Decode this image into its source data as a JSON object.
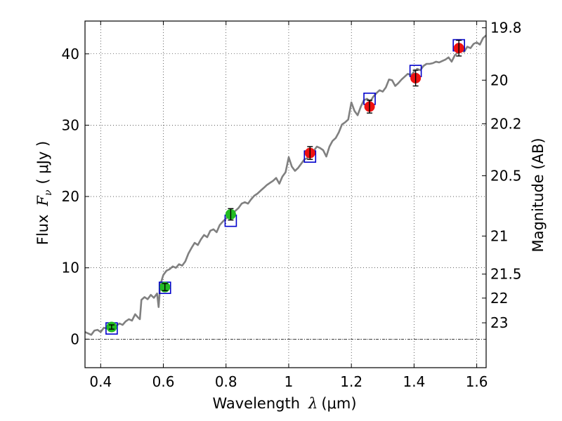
{
  "chart_data": {
    "type": "scatter",
    "title": "",
    "xlabel": "Wavelength",
    "xlabel_symbol": "λ",
    "xlabel_unit": "(μm)",
    "ylabel": "Flux",
    "ylabel_symbol": "F",
    "ylabel_subscript": "ν",
    "ylabel_unit": "( μJy )",
    "y2label": "Magnitude (AB)",
    "xlim": [
      0.35,
      1.63
    ],
    "ylim": [
      -4,
      44.6
    ],
    "grid": true,
    "xticks": [
      0.4,
      0.6,
      0.8,
      1.0,
      1.2,
      1.4,
      1.6
    ],
    "xtick_labels": [
      "0.4",
      "0.6",
      "0.8",
      "1",
      "1.2",
      "1.4",
      "1.6"
    ],
    "yticks": [
      0,
      10,
      20,
      30,
      40
    ],
    "ytick_labels": [
      "0",
      "10",
      "20",
      "30",
      "40"
    ],
    "mag_ticks": [
      19.8,
      20,
      20.2,
      20.5,
      21,
      21.5,
      22,
      23
    ],
    "mag_tick_labels": [
      "19.8",
      "20",
      "20.2",
      "20.5",
      "21",
      "21.5",
      "22",
      "23"
    ],
    "colors": {
      "spectrum": "#808080",
      "model_box": "#0000cc",
      "green_points": "#22bb22",
      "red_points": "#ee1111",
      "errorbar": "#000000",
      "zero_line": "#000000"
    },
    "series": [
      {
        "name": "model_spectrum",
        "kind": "line",
        "x": [
          0.35,
          0.37,
          0.38,
          0.39,
          0.4,
          0.41,
          0.42,
          0.43,
          0.44,
          0.45,
          0.46,
          0.47,
          0.48,
          0.49,
          0.5,
          0.51,
          0.52,
          0.525,
          0.53,
          0.54,
          0.55,
          0.56,
          0.57,
          0.58,
          0.585,
          0.59,
          0.6,
          0.61,
          0.62,
          0.63,
          0.64,
          0.65,
          0.66,
          0.67,
          0.68,
          0.69,
          0.7,
          0.71,
          0.72,
          0.73,
          0.74,
          0.75,
          0.76,
          0.77,
          0.78,
          0.79,
          0.8,
          0.81,
          0.82,
          0.83,
          0.84,
          0.85,
          0.86,
          0.87,
          0.88,
          0.89,
          0.9,
          0.91,
          0.92,
          0.93,
          0.94,
          0.95,
          0.96,
          0.97,
          0.98,
          0.99,
          1.0,
          1.01,
          1.02,
          1.03,
          1.04,
          1.05,
          1.06,
          1.07,
          1.08,
          1.09,
          1.1,
          1.11,
          1.12,
          1.13,
          1.14,
          1.15,
          1.16,
          1.17,
          1.18,
          1.19,
          1.2,
          1.21,
          1.22,
          1.23,
          1.24,
          1.25,
          1.26,
          1.27,
          1.28,
          1.29,
          1.3,
          1.31,
          1.32,
          1.33,
          1.34,
          1.35,
          1.36,
          1.37,
          1.38,
          1.39,
          1.4,
          1.41,
          1.42,
          1.43,
          1.44,
          1.45,
          1.46,
          1.47,
          1.48,
          1.49,
          1.5,
          1.51,
          1.52,
          1.53,
          1.54,
          1.55,
          1.56,
          1.57,
          1.58,
          1.59,
          1.6,
          1.61,
          1.62,
          1.63
        ],
        "y": [
          1.0,
          0.6,
          1.2,
          1.3,
          1.0,
          1.6,
          1.5,
          1.8,
          1.7,
          1.9,
          2.2,
          2.0,
          2.5,
          2.8,
          2.6,
          3.5,
          3.0,
          2.8,
          5.5,
          5.9,
          5.6,
          6.2,
          5.8,
          6.4,
          4.5,
          7.6,
          9.0,
          9.6,
          9.8,
          10.2,
          10.0,
          10.5,
          10.3,
          10.9,
          12.0,
          12.8,
          13.5,
          13.2,
          14.0,
          14.6,
          14.3,
          15.2,
          15.4,
          15.0,
          16.0,
          16.5,
          16.9,
          17.3,
          17.7,
          18.0,
          18.4,
          19.0,
          19.2,
          19.0,
          19.6,
          20.1,
          20.4,
          20.8,
          21.2,
          21.6,
          21.9,
          22.2,
          22.6,
          21.8,
          22.8,
          23.4,
          25.5,
          24.2,
          23.6,
          24.0,
          24.6,
          25.2,
          25.4,
          26.1,
          26.4,
          27.0,
          26.8,
          26.5,
          25.6,
          27.0,
          27.8,
          28.2,
          29.0,
          30.1,
          30.4,
          30.8,
          33.2,
          32.0,
          31.4,
          32.6,
          33.5,
          33.7,
          33.3,
          34.0,
          34.5,
          34.9,
          34.7,
          35.3,
          36.4,
          36.3,
          35.5,
          35.9,
          36.4,
          36.8,
          37.2,
          37.0,
          37.5,
          37.9,
          37.7,
          38.3,
          38.6,
          38.6,
          38.7,
          38.9,
          38.8,
          39.0,
          39.2,
          39.5,
          38.9,
          39.8,
          40.2,
          40.5,
          40.3,
          41.0,
          40.8,
          41.4,
          41.6,
          41.3,
          42.2,
          42.6
        ]
      },
      {
        "name": "model_photometry",
        "kind": "box",
        "x": [
          0.435,
          0.605,
          0.815,
          1.068,
          1.258,
          1.405,
          1.543
        ],
        "y": [
          1.5,
          7.2,
          16.6,
          25.6,
          33.7,
          37.6,
          41.2
        ]
      },
      {
        "name": "observed_optical",
        "kind": "errorbar",
        "color_key": "green_points",
        "x": [
          0.435,
          0.605,
          0.815
        ],
        "y": [
          1.7,
          7.3,
          17.5
        ],
        "yerr": [
          0.3,
          0.5,
          0.8
        ]
      },
      {
        "name": "observed_nir",
        "kind": "errorbar",
        "color_key": "red_points",
        "x": [
          1.068,
          1.258,
          1.405,
          1.543
        ],
        "y": [
          26.1,
          32.6,
          36.6,
          40.8
        ],
        "yerr": [
          0.9,
          0.9,
          1.1,
          1.1
        ]
      }
    ]
  }
}
